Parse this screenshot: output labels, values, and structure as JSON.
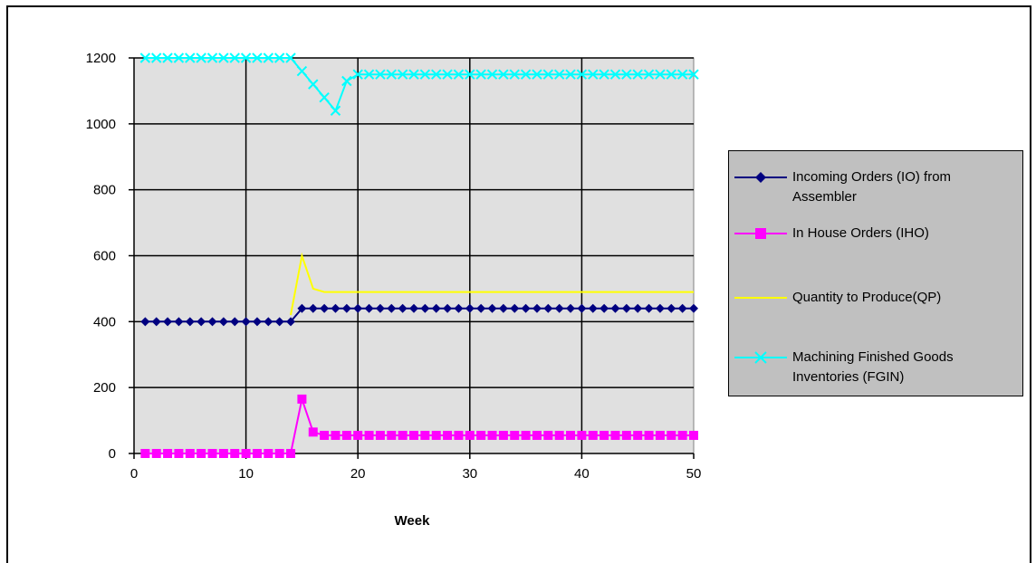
{
  "chart_data": {
    "type": "line",
    "title": "",
    "xlabel": "Week",
    "ylabel": "",
    "xlim": [
      0,
      50
    ],
    "ylim": [
      0,
      1200
    ],
    "xticks": [
      "0",
      "10",
      "20",
      "30",
      "40",
      "50"
    ],
    "yticks": [
      "0",
      "200",
      "400",
      "600",
      "800",
      "1000",
      "1200"
    ],
    "grid": "major gridlines on both axes",
    "legend_position": "right",
    "plot_background": "#e0e0e0",
    "series": [
      {
        "name": "Incoming Orders (IO) from Assembler",
        "color": "#000080",
        "marker": "diamond",
        "x": [
          1,
          2,
          3,
          4,
          5,
          6,
          7,
          8,
          9,
          10,
          11,
          12,
          13,
          14,
          15,
          16,
          17,
          18,
          19,
          20,
          21,
          22,
          23,
          24,
          25,
          26,
          27,
          28,
          29,
          30,
          31,
          32,
          33,
          34,
          35,
          36,
          37,
          38,
          39,
          40,
          41,
          42,
          43,
          44,
          45,
          46,
          47,
          48,
          49,
          50
        ],
        "values": [
          400,
          400,
          400,
          400,
          400,
          400,
          400,
          400,
          400,
          400,
          400,
          400,
          400,
          400,
          440,
          440,
          440,
          440,
          440,
          440,
          440,
          440,
          440,
          440,
          440,
          440,
          440,
          440,
          440,
          440,
          440,
          440,
          440,
          440,
          440,
          440,
          440,
          440,
          440,
          440,
          440,
          440,
          440,
          440,
          440,
          440,
          440,
          440,
          440,
          440
        ]
      },
      {
        "name": "In House Orders (IHO)",
        "color": "#ff00ff",
        "marker": "square",
        "x": [
          1,
          2,
          3,
          4,
          5,
          6,
          7,
          8,
          9,
          10,
          11,
          12,
          13,
          14,
          15,
          16,
          17,
          18,
          19,
          20,
          21,
          22,
          23,
          24,
          25,
          26,
          27,
          28,
          29,
          30,
          31,
          32,
          33,
          34,
          35,
          36,
          37,
          38,
          39,
          40,
          41,
          42,
          43,
          44,
          45,
          46,
          47,
          48,
          49,
          50
        ],
        "values": [
          0,
          0,
          0,
          0,
          0,
          0,
          0,
          0,
          0,
          0,
          0,
          0,
          0,
          0,
          165,
          65,
          55,
          55,
          55,
          55,
          55,
          55,
          55,
          55,
          55,
          55,
          55,
          55,
          55,
          55,
          55,
          55,
          55,
          55,
          55,
          55,
          55,
          55,
          55,
          55,
          55,
          55,
          55,
          55,
          55,
          55,
          55,
          55,
          55,
          55
        ]
      },
      {
        "name": "Quantity to Produce(QP)",
        "color": "#ffff00",
        "marker": "none",
        "x": [
          14,
          15,
          16,
          17,
          18,
          19,
          20,
          21,
          22,
          23,
          24,
          25,
          26,
          27,
          28,
          29,
          30,
          31,
          32,
          33,
          34,
          35,
          36,
          37,
          38,
          39,
          40,
          41,
          42,
          43,
          44,
          45,
          46,
          47,
          48,
          49,
          50
        ],
        "values": [
          420,
          600,
          500,
          490,
          490,
          490,
          490,
          490,
          490,
          490,
          490,
          490,
          490,
          490,
          490,
          490,
          490,
          490,
          490,
          490,
          490,
          490,
          490,
          490,
          490,
          490,
          490,
          490,
          490,
          490,
          490,
          490,
          490,
          490,
          490,
          490,
          490
        ]
      },
      {
        "name": "Machining Finished Goods Inventories (FGIN)",
        "color": "#00ffff",
        "marker": "x",
        "x": [
          1,
          2,
          3,
          4,
          5,
          6,
          7,
          8,
          9,
          10,
          11,
          12,
          13,
          14,
          15,
          16,
          17,
          18,
          19,
          20,
          21,
          22,
          23,
          24,
          25,
          26,
          27,
          28,
          29,
          30,
          31,
          32,
          33,
          34,
          35,
          36,
          37,
          38,
          39,
          40,
          41,
          42,
          43,
          44,
          45,
          46,
          47,
          48,
          49,
          50
        ],
        "values": [
          1200,
          1200,
          1200,
          1200,
          1200,
          1200,
          1200,
          1200,
          1200,
          1200,
          1200,
          1200,
          1200,
          1200,
          1160,
          1120,
          1080,
          1040,
          1130,
          1150,
          1150,
          1150,
          1150,
          1150,
          1150,
          1150,
          1150,
          1150,
          1150,
          1150,
          1150,
          1150,
          1150,
          1150,
          1150,
          1150,
          1150,
          1150,
          1150,
          1150,
          1150,
          1150,
          1150,
          1150,
          1150,
          1150,
          1150,
          1150,
          1150,
          1150
        ]
      }
    ]
  },
  "legend": {
    "items": [
      {
        "line1": "Incoming Orders (IO) from",
        "line2": "Assembler"
      },
      {
        "line1": "In House Orders (IHO)",
        "line2": ""
      },
      {
        "line1": "Quantity to Produce(QP)",
        "line2": ""
      },
      {
        "line1": "Machining Finished Goods",
        "line2": "Inventories (FGIN)"
      }
    ]
  }
}
